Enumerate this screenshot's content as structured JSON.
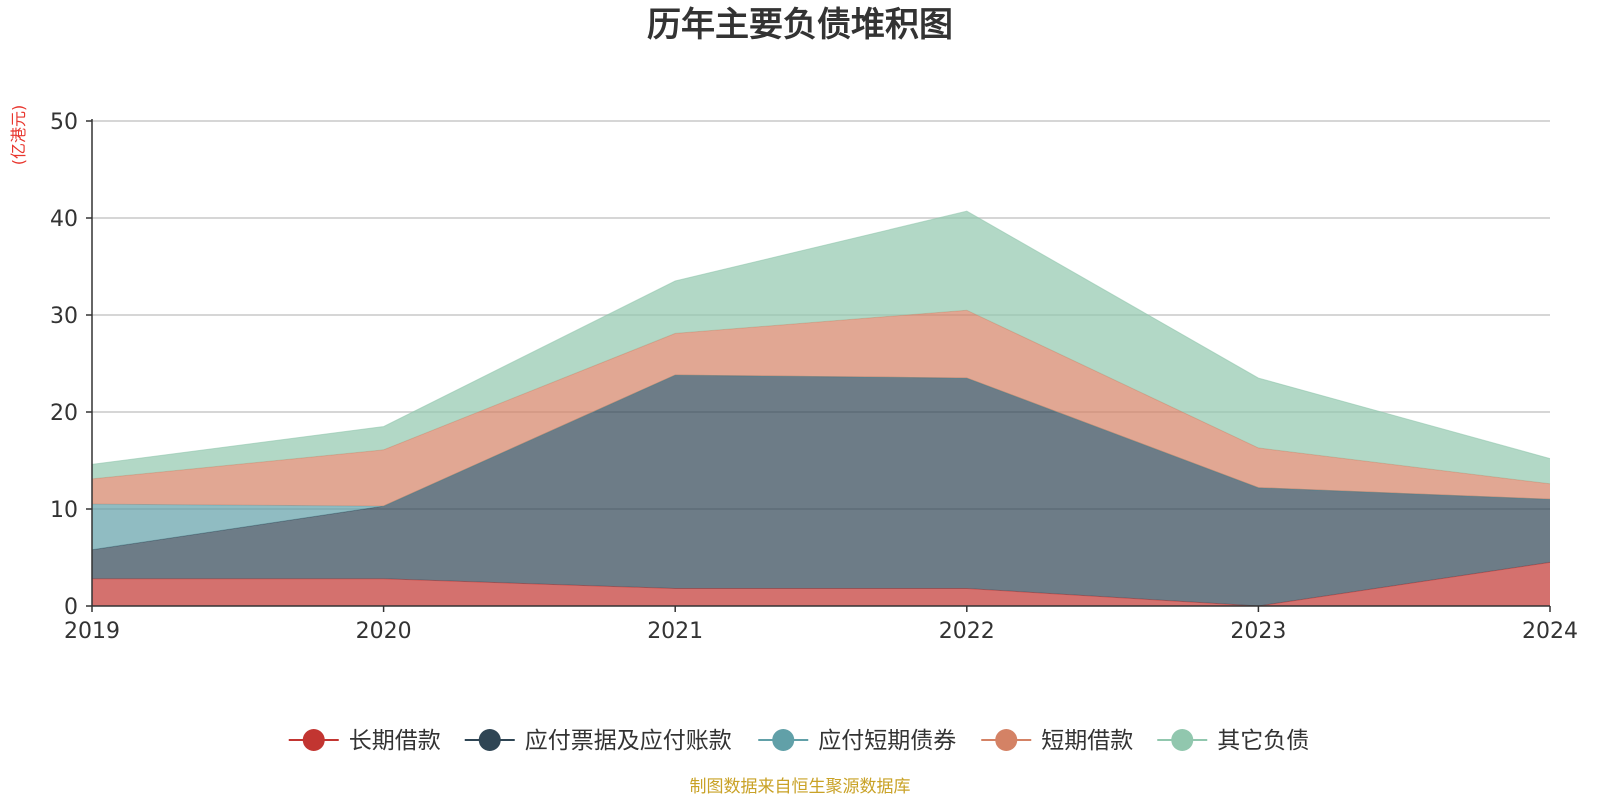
{
  "chart_data": {
    "type": "area",
    "title": "历年主要负债堆积图",
    "unit_label": "(亿港元)",
    "source_note": "制图数据来自恒生聚源数据库",
    "stacked": true,
    "categories": [
      "2019",
      "2020",
      "2021",
      "2022",
      "2023",
      "2024"
    ],
    "ylim": [
      0,
      50
    ],
    "yticks": [
      0,
      10,
      20,
      30,
      40,
      50
    ],
    "grid": true,
    "legend_position": "bottom",
    "series": [
      {
        "name": "长期借款",
        "color": "#c23531",
        "values": [
          2.8,
          2.8,
          1.8,
          1.8,
          0,
          4.5
        ]
      },
      {
        "name": "应付票据及应付账款",
        "color": "#2f4554",
        "values": [
          3.0,
          7.5,
          22.0,
          21.7,
          12.2,
          6.5
        ]
      },
      {
        "name": "应付短期债券",
        "color": "#61a0a8",
        "values": [
          4.7,
          0,
          0,
          0,
          0,
          0
        ]
      },
      {
        "name": "短期借款",
        "color": "#d48265",
        "values": [
          2.6,
          5.8,
          4.3,
          7.0,
          4.1,
          1.6
        ]
      },
      {
        "name": "其它负债",
        "color": "#91c7ae",
        "values": [
          1.5,
          2.4,
          5.4,
          10.2,
          7.2,
          2.6
        ]
      }
    ]
  }
}
